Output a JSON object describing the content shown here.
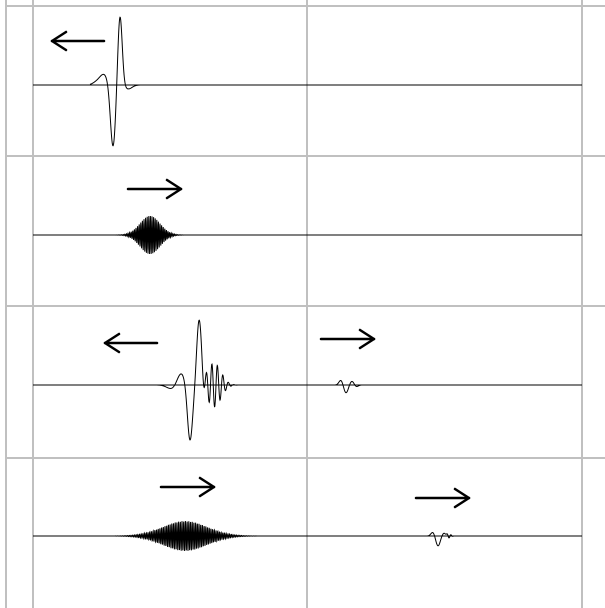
{
  "colors": {
    "background": "#ffffff",
    "grid": "#c0c0c0",
    "axis": "#000000",
    "wave": "#000000",
    "arrow": "#000000"
  },
  "panels": [
    {
      "name": "panel-1",
      "left_region": {
        "arrow": "left",
        "signal": "single-pulse"
      },
      "right_region": {
        "arrow": "none",
        "signal": "flat"
      }
    },
    {
      "name": "panel-2",
      "left_region": {
        "arrow": "right",
        "signal": "wave-packet"
      },
      "right_region": {
        "arrow": "none",
        "signal": "flat"
      }
    },
    {
      "name": "panel-3",
      "left_region": {
        "arrow": "left",
        "signal": "reflected-pulse"
      },
      "right_region": {
        "arrow": "right",
        "signal": "small-transmitted-pulse"
      }
    },
    {
      "name": "panel-4",
      "left_region": {
        "arrow": "right",
        "signal": "wide-wave-packet"
      },
      "right_region": {
        "arrow": "right",
        "signal": "small-transmitted-pulse"
      }
    }
  ]
}
